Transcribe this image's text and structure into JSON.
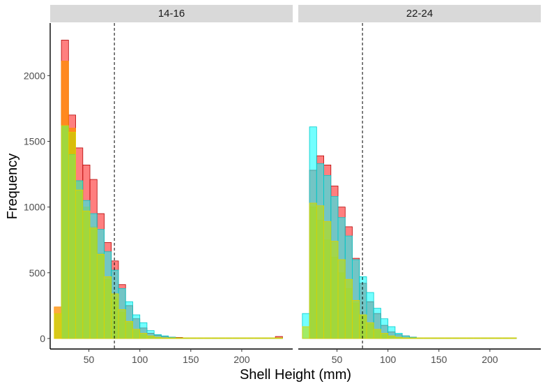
{
  "chart_data": {
    "type": "bar",
    "subtype": "overlaid-histogram-faceted",
    "xlabel": "Shell Height (mm)",
    "ylabel": "Frequency",
    "xlim": [
      12,
      250
    ],
    "ylim": [
      -80,
      2400
    ],
    "xticks": [
      50,
      100,
      150,
      200
    ],
    "yticks": [
      0,
      500,
      1000,
      1500,
      2000
    ],
    "bin_width": 7,
    "bin_start": 16,
    "reference_line_x": 75,
    "grid": false,
    "legend": "none",
    "series_colors": [
      {
        "fill": "#ff0000",
        "stroke": "#b40000",
        "opacity": 0.5
      },
      {
        "fill": "#ff8c00",
        "stroke": "#ff8c00",
        "opacity": 0.75
      },
      {
        "fill": "#00ffff",
        "stroke": "#00cccc",
        "opacity": 0.55
      },
      {
        "fill": "#bfe000",
        "stroke": "#e0d000",
        "opacity": 0.6
      }
    ],
    "panels": [
      {
        "strip": "14-16",
        "series": [
          {
            "values": [
              0,
              2270,
              1700,
              1450,
              1320,
              1210,
              950,
              730,
              590,
              410,
              250,
              150,
              80,
              40,
              25,
              15,
              10,
              8,
              5,
              5,
              5,
              5,
              5,
              5,
              5,
              5,
              5,
              5,
              5,
              5,
              5,
              15
            ]
          },
          {
            "values": [
              240,
              2110,
              1600,
              1200,
              1000,
              850,
              650,
              450,
              300,
              200,
              120,
              60,
              30,
              15,
              10,
              5,
              5,
              5,
              5,
              5,
              5,
              5,
              5,
              5,
              5,
              5,
              5,
              5,
              5,
              5,
              5,
              5
            ]
          },
          {
            "values": [
              0,
              1620,
              1400,
              1200,
              1050,
              950,
              830,
              660,
              520,
              380,
              280,
              180,
              120,
              60,
              30,
              20,
              10,
              5,
              5,
              5,
              5,
              5,
              5,
              5,
              5,
              5,
              5,
              5,
              5,
              5,
              5,
              5
            ]
          },
          {
            "values": [
              190,
              1620,
              1570,
              1130,
              970,
              840,
              640,
              470,
              340,
              220,
              130,
              70,
              40,
              20,
              10,
              5,
              5,
              5,
              5,
              5,
              5,
              5,
              5,
              5,
              5,
              5,
              5,
              5,
              5,
              5,
              5,
              5
            ]
          }
        ]
      },
      {
        "strip": "22-24",
        "series": [
          {
            "values": [
              0,
              1280,
              1390,
              1320,
              1160,
              1000,
              850,
              610,
              420,
              280,
              190,
              100,
              50,
              30,
              20,
              10,
              5,
              5,
              5,
              5,
              5,
              5,
              5,
              5,
              5,
              5,
              5,
              5,
              5,
              5
            ]
          },
          {
            "values": [
              0,
              1000,
              900,
              750,
              620,
              500,
              380,
              270,
              180,
              110,
              60,
              30,
              15,
              10,
              5,
              5,
              5,
              5,
              5,
              5,
              5,
              5,
              5,
              5,
              5,
              5,
              5,
              5,
              5,
              5
            ]
          },
          {
            "values": [
              190,
              1610,
              1330,
              1240,
              1080,
              920,
              780,
              600,
              470,
              350,
              230,
              150,
              90,
              40,
              20,
              10,
              5,
              5,
              5,
              5,
              5,
              5,
              5,
              5,
              5,
              5,
              5,
              5,
              5,
              5
            ]
          },
          {
            "values": [
              90,
              1030,
              1010,
              890,
              740,
              600,
              450,
              290,
              180,
              120,
              70,
              40,
              20,
              10,
              5,
              5,
              5,
              5,
              5,
              5,
              5,
              5,
              5,
              5,
              5,
              5,
              5,
              5,
              5,
              5
            ]
          }
        ]
      }
    ]
  }
}
